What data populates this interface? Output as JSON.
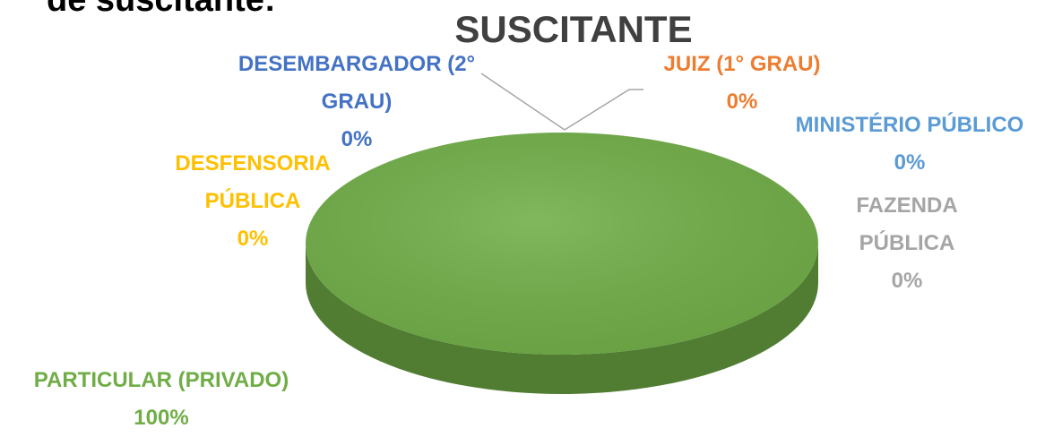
{
  "chart_data": {
    "type": "pie",
    "heading": "de suscitante:",
    "title": "SUSCITANTE",
    "categories": [
      "DESEMBARGADOR (2° GRAU)",
      "JUIZ (1° GRAU)",
      "MINISTÉRIO PÚBLICO",
      "FAZENDA PÚBLICA",
      "PARTICULAR (PRIVADO)",
      "DESFENSORIA PÚBLICA"
    ],
    "values": [
      0,
      0,
      0,
      0,
      100,
      0
    ],
    "value_labels": [
      "0%",
      "0%",
      "0%",
      "0%",
      "100%",
      "0%"
    ],
    "colors": [
      "#4472c4",
      "#ed7d31",
      "#5b9bd5",
      "#a5a5a5",
      "#70ad47",
      "#ffc000"
    ]
  }
}
